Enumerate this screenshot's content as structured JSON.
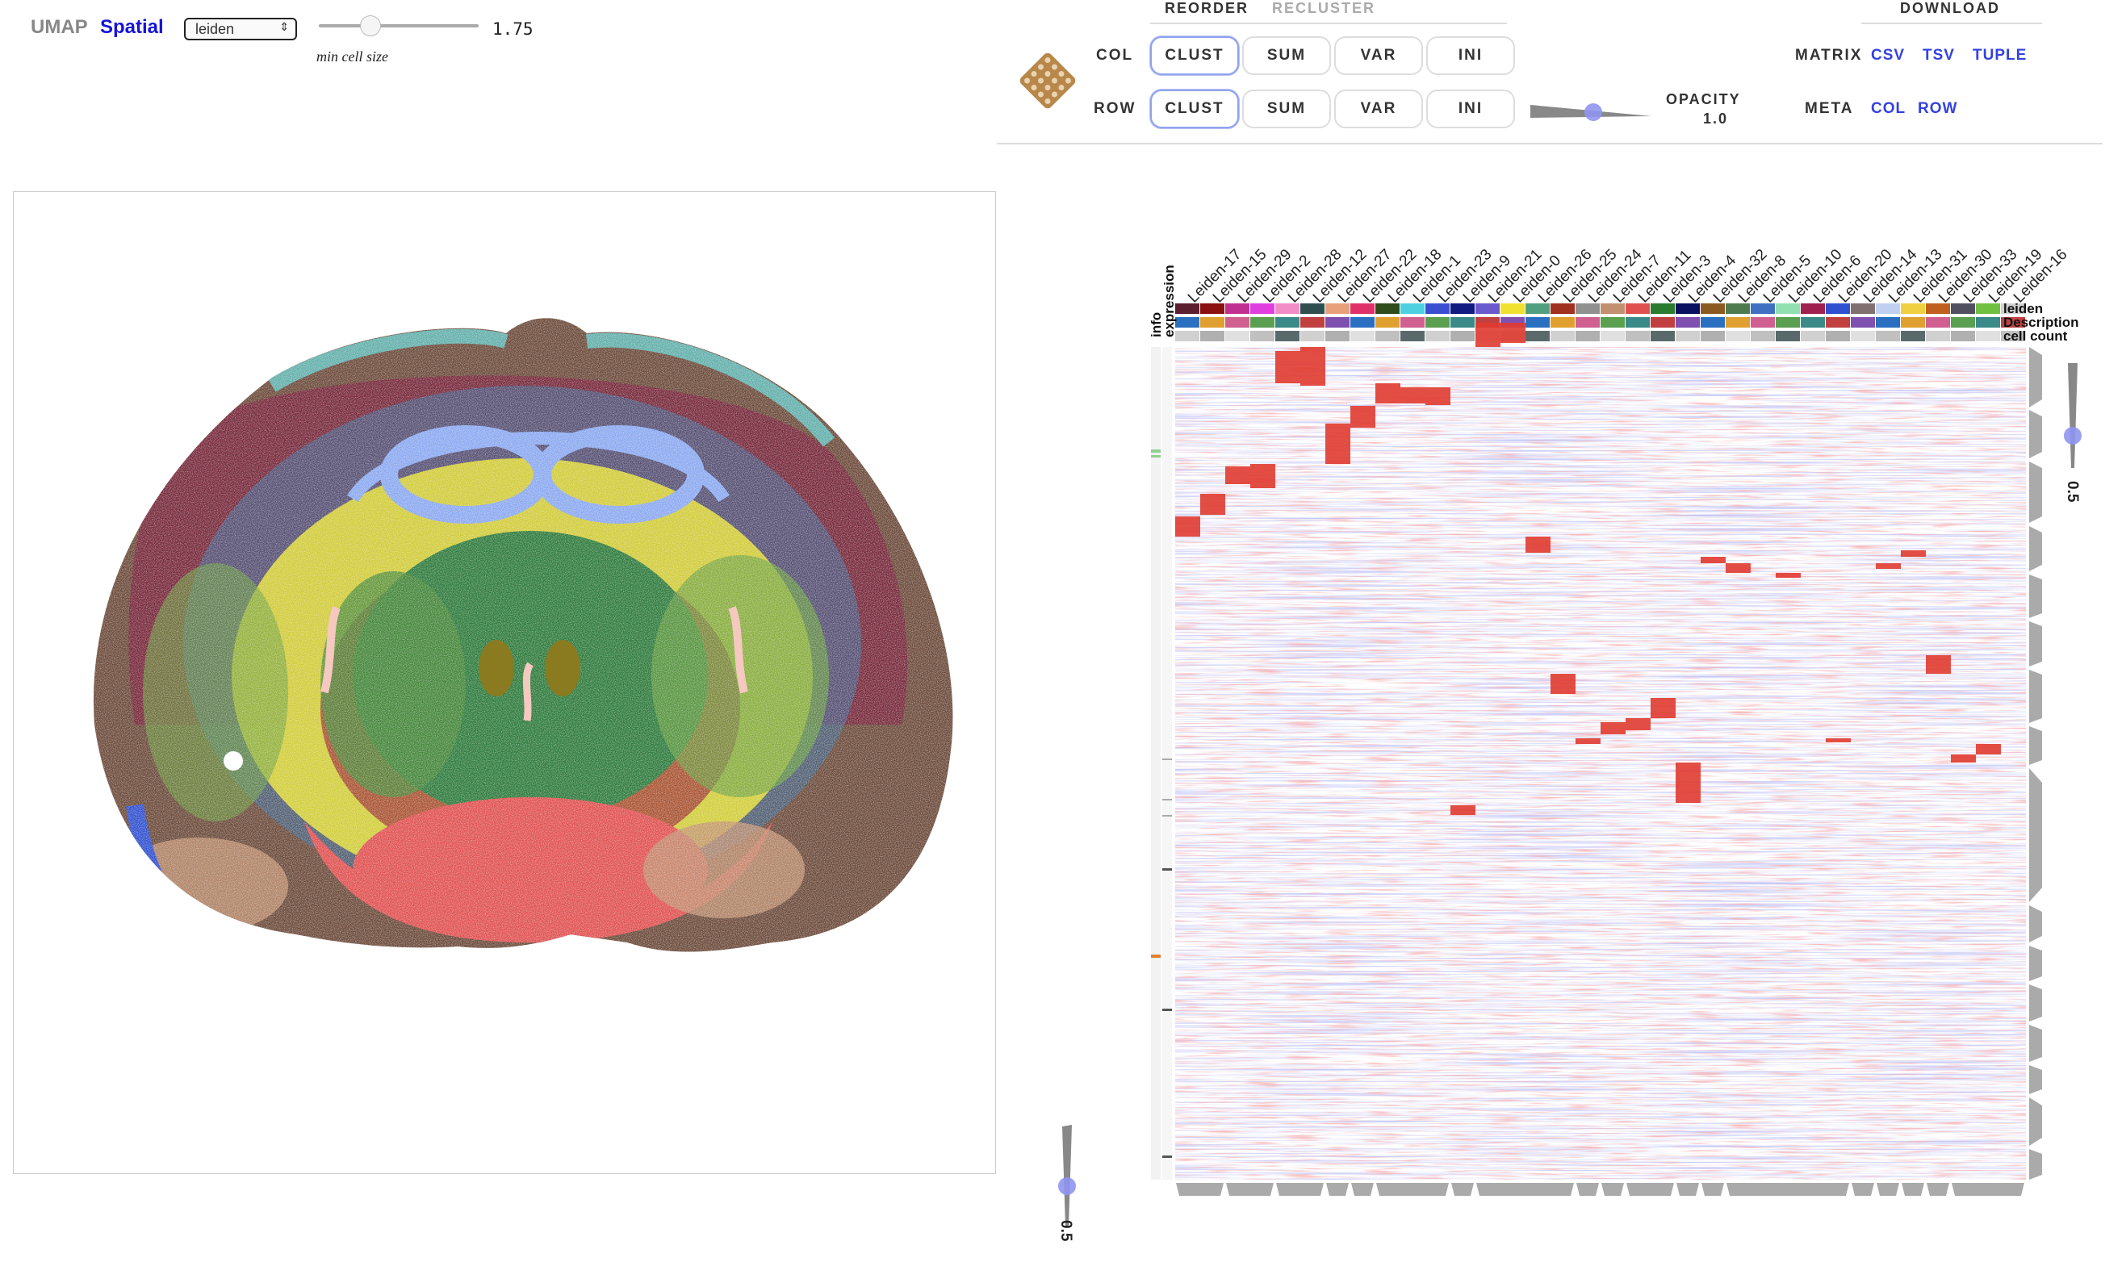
{
  "tabs": {
    "umap": "UMAP",
    "spatial": "Spatial"
  },
  "category_select": {
    "value": "leiden"
  },
  "cell_size": {
    "value": "1.75",
    "label": "min cell size",
    "fraction": 0.32
  },
  "reorder": {
    "title": "REORDER",
    "recluster": "RECLUSTER"
  },
  "download": {
    "title": "DOWNLOAD"
  },
  "col_row": {
    "col_label": "COL",
    "row_label": "ROW",
    "buttons": [
      "CLUST",
      "SUM",
      "VAR",
      "INI"
    ],
    "active": "CLUST"
  },
  "opacity": {
    "label": "OPACITY",
    "value": "1.0"
  },
  "matrix": {
    "label": "MATRIX",
    "links": [
      "CSV",
      "TSV",
      "TUPLE"
    ]
  },
  "meta": {
    "label": "META",
    "links": [
      "COL",
      "ROW"
    ]
  },
  "heatmap": {
    "columns": [
      "Leiden-17",
      "Leiden-15",
      "Leiden-29",
      "Leiden-2",
      "Leiden-28",
      "Leiden-12",
      "Leiden-27",
      "Leiden-22",
      "Leiden-18",
      "Leiden-1",
      "Leiden-23",
      "Leiden-9",
      "Leiden-21",
      "Leiden-0",
      "Leiden-26",
      "Leiden-25",
      "Leiden-24",
      "Leiden-7",
      "Leiden-11",
      "Leiden-3",
      "Leiden-4",
      "Leiden-32",
      "Leiden-8",
      "Leiden-5",
      "Leiden-10",
      "Leiden-6",
      "Leiden-20",
      "Leiden-14",
      "Leiden-13",
      "Leiden-31",
      "Leiden-30",
      "Leiden-33",
      "Leiden-19",
      "Leiden-16"
    ],
    "col_category_labels": [
      "leiden",
      "Description",
      "cell count"
    ],
    "row_category_labels": [
      "info",
      "expression"
    ],
    "col_slider_value": "0.5",
    "row_slider_value": "0.5",
    "leiden_colors": [
      "#5b1f2f",
      "#8b1010",
      "#c03090",
      "#e13ee0",
      "#f28dc7",
      "#2f4f4f",
      "#e8a07a",
      "#e0306a",
      "#2e4c1c",
      "#4fd0e0",
      "#3a4fd0",
      "#101a80",
      "#6a5acd",
      "#f0e030",
      "#50a080",
      "#a03020",
      "#909090",
      "#c09070",
      "#e05050",
      "#2a7a30",
      "#0a1060",
      "#8a5a20",
      "#4f7a4f",
      "#4070c0",
      "#90e0b0",
      "#a02050",
      "#3050d0",
      "#807070",
      "#c0d0f0",
      "#f0d040",
      "#c06020",
      "#505060",
      "#70c040",
      "#d0d0d0"
    ]
  }
}
